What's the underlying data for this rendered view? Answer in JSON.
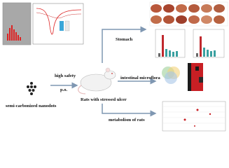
{
  "nodes": [
    {
      "label": "semi-carbonized nanodots"
    },
    {
      "label": "high safety"
    },
    {
      "label": "p.o."
    },
    {
      "label": "Rats with stressed ulcer"
    },
    {
      "label": "Stomach"
    },
    {
      "label": "intestinal microflora"
    },
    {
      "label": "metabolism of rats"
    }
  ]
}
